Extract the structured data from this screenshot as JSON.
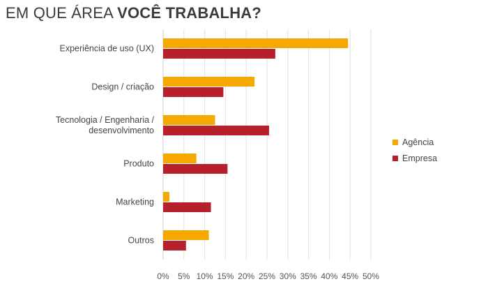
{
  "title": {
    "light": "EM QUE ÁREA ",
    "bold": "VOCÊ TRABALHA?"
  },
  "chart_data": {
    "type": "bar",
    "orientation": "horizontal",
    "categories": [
      [
        "Experiência de uso (UX)"
      ],
      [
        "Design / criação"
      ],
      [
        "Tecnologia / Engenharia /",
        "desenvolvimento"
      ],
      [
        "Produto"
      ],
      [
        "Marketing"
      ],
      [
        "Outros"
      ]
    ],
    "series": [
      {
        "name": "Agência",
        "color": "#f5a800",
        "values": [
          44.5,
          22,
          12.5,
          8,
          1.5,
          11
        ]
      },
      {
        "name": "Empresa",
        "color": "#b5202a",
        "values": [
          27,
          14.5,
          25.5,
          15.5,
          11.5,
          5.5
        ]
      }
    ],
    "xlim": [
      0,
      50
    ],
    "xticks": [
      0,
      5,
      10,
      15,
      20,
      25,
      30,
      35,
      40,
      45,
      50
    ],
    "tick_suffix": "%",
    "grid": true,
    "legend_position": "right"
  }
}
